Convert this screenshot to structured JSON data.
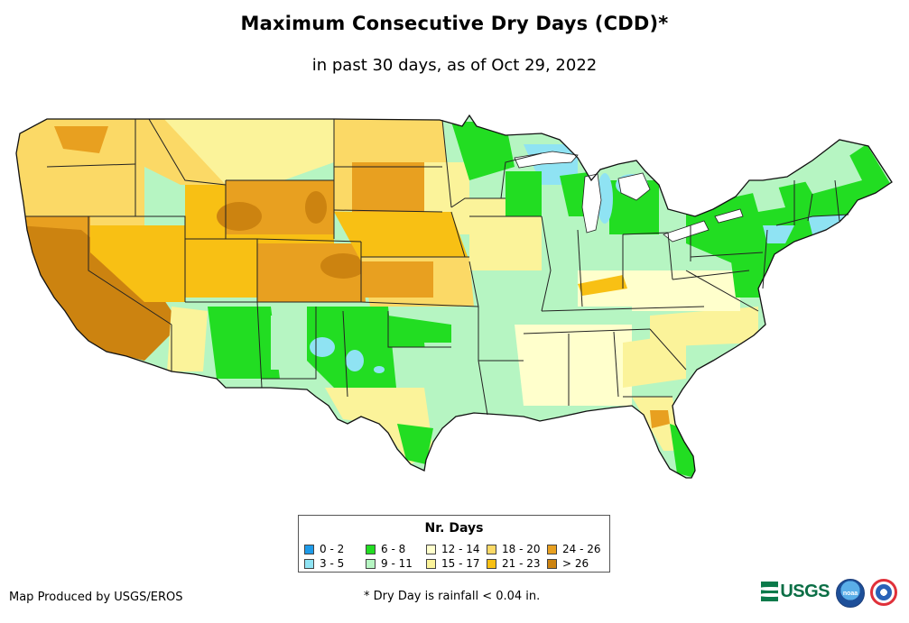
{
  "title": "Maximum Consecutive Dry Days (CDD)*",
  "subtitle": "in past 30 days, as of Oct 29, 2022",
  "legend": {
    "title": "Nr. Days",
    "items": [
      {
        "label": "0 - 2",
        "color": "#1e9be9"
      },
      {
        "label": "3 - 5",
        "color": "#8fe3f3"
      },
      {
        "label": "6 - 8",
        "color": "#22dd22"
      },
      {
        "label": "9 - 11",
        "color": "#b6f5c2"
      },
      {
        "label": "12 - 14",
        "color": "#ffffcc"
      },
      {
        "label": "15 - 17",
        "color": "#fbf39a"
      },
      {
        "label": "18 - 20",
        "color": "#fbd966"
      },
      {
        "label": "21 - 23",
        "color": "#f8c014"
      },
      {
        "label": "24 - 26",
        "color": "#e8a020"
      },
      {
        "label": "> 26",
        "color": "#cc8310"
      }
    ]
  },
  "credit": "Map Produced by USGS/EROS",
  "footnote": "* Dry Day is rainfall < 0.04 in.",
  "logos": {
    "usgs": "USGS",
    "noaa": "noaa",
    "nws": "NWS"
  }
}
